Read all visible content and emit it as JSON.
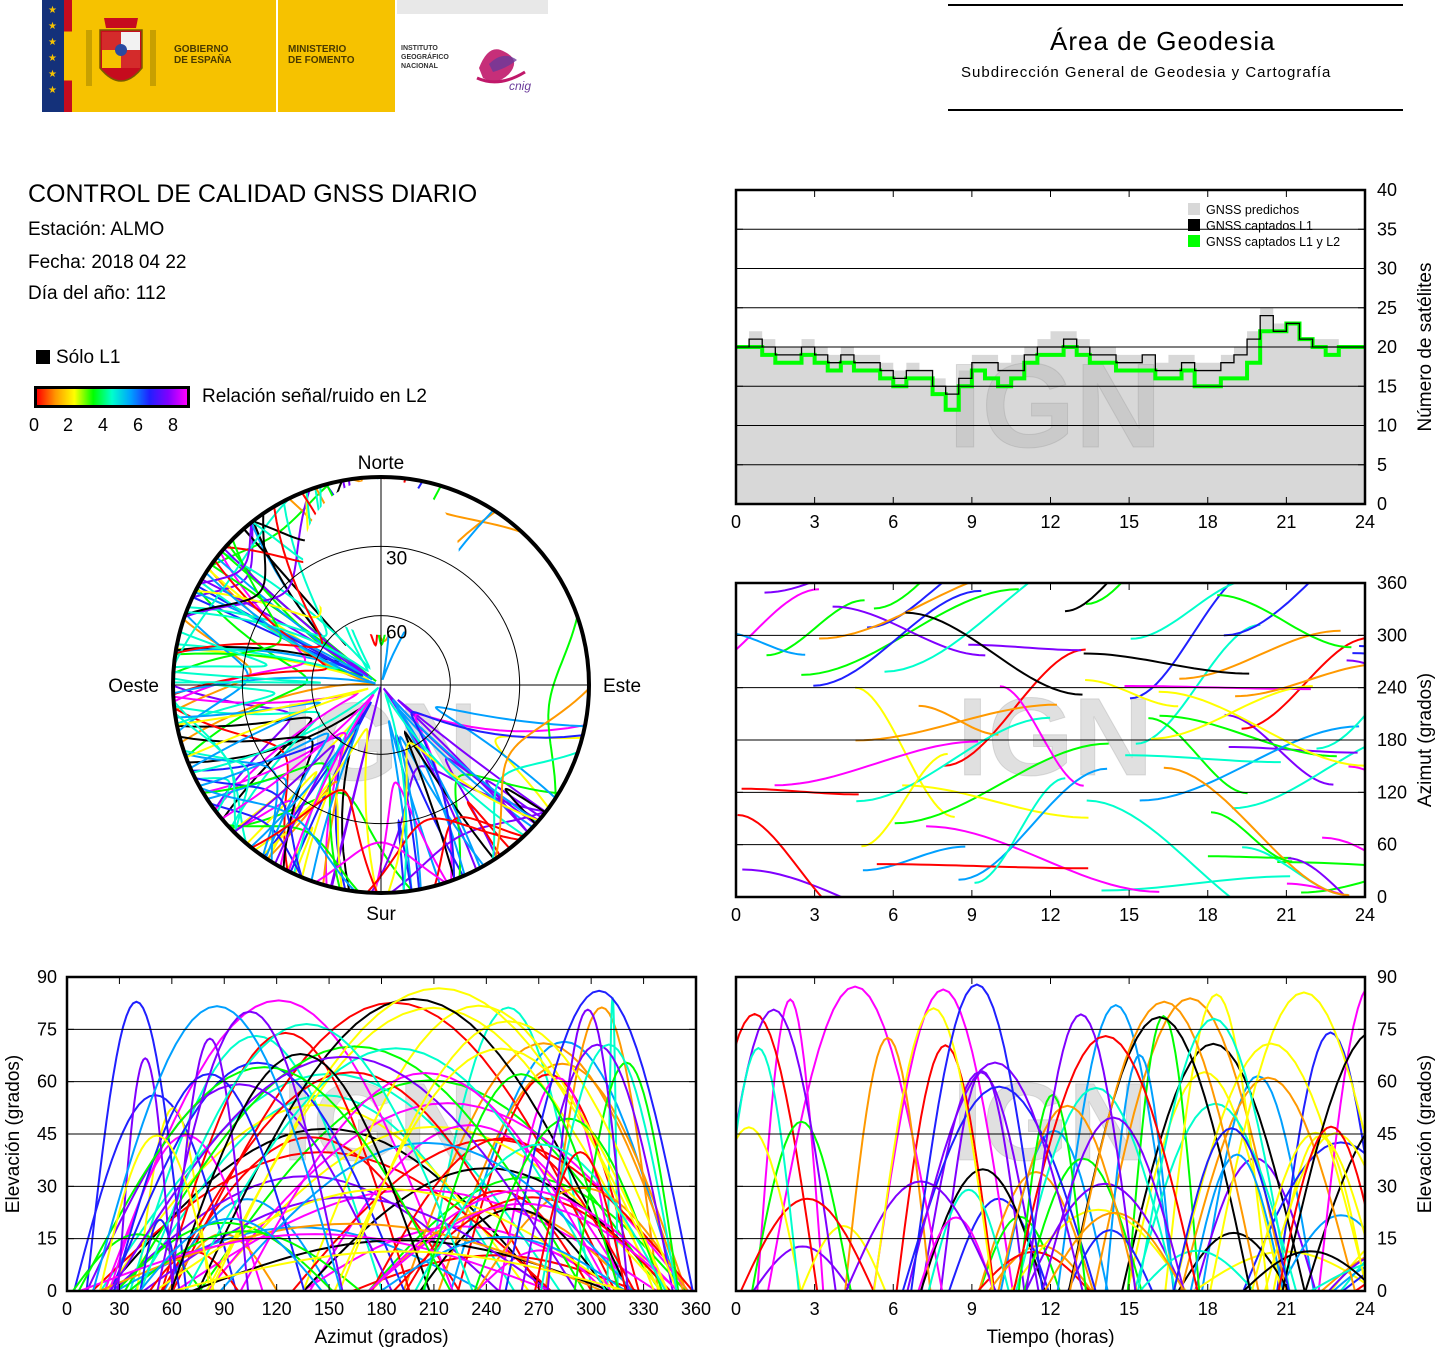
{
  "header": {
    "gobierno_label": "GOBIERNO\nDE ESPAÑA",
    "ministerio_label": "MINISTERIO\nDE FOMENTO",
    "instituto_label": "INSTITUTO\nGEOGRÁFICO\nNACIONAL",
    "cnig_label": "cnig",
    "area_title": "Área de Geodesia",
    "area_subtitle": "Subdirección General de Geodesia y Cartografía"
  },
  "report": {
    "title": "CONTROL DE CALIDAD GNSS DIARIO",
    "station": "Estación: ALMO",
    "date": "Fecha: 2018 04 22",
    "doy": "Día del año: 112"
  },
  "legend": {
    "solo_l1": "Sólo L1",
    "snr_label": "Relación señal/ruido en L2",
    "snr_ticks": [
      "0",
      "2",
      "4",
      "6",
      "8"
    ],
    "colors": [
      "#ff0000",
      "#ff9900",
      "#ffff00",
      "#00ff00",
      "#00ffcc",
      "#00a0ff",
      "#2020ff",
      "#8000ff",
      "#ff00ff"
    ]
  },
  "watermark": "IGN",
  "chart_data": [
    {
      "type": "area",
      "id": "satellite-count",
      "ylabel": "Número de satélites",
      "xlim": [
        0,
        24
      ],
      "ylim": [
        0,
        40
      ],
      "xticks": [
        "0",
        "3",
        "6",
        "9",
        "12",
        "15",
        "18",
        "21",
        "24"
      ],
      "yticks": [
        "0",
        "5",
        "10",
        "15",
        "20",
        "25",
        "30",
        "35",
        "40"
      ],
      "grid": true,
      "legend_position": "top-right",
      "series": [
        {
          "name": "GNSS predichos",
          "color": "#d8d8d8",
          "x": [
            0,
            0.5,
            1,
            1.5,
            2,
            2.5,
            3,
            3.5,
            4,
            4.5,
            5,
            5.5,
            6,
            6.5,
            7,
            7.5,
            8,
            8.5,
            9,
            9.5,
            10,
            10.5,
            11,
            11.5,
            12,
            12.5,
            13,
            13.5,
            14,
            14.5,
            15,
            15.5,
            16,
            16.5,
            17,
            17.5,
            18,
            18.5,
            19,
            19.5,
            20,
            20.5,
            21,
            21.5,
            22,
            22.5,
            23,
            23.5,
            24
          ],
          "y": [
            20,
            22,
            21,
            20,
            20,
            21,
            20,
            19,
            20,
            19,
            19,
            18,
            17,
            18,
            17,
            16,
            15,
            17,
            19,
            19,
            18,
            19,
            20,
            21,
            22,
            22,
            21,
            20,
            20,
            19,
            19,
            19,
            18,
            19,
            19,
            18,
            18,
            19,
            20,
            22,
            25,
            23,
            23,
            21,
            21,
            21,
            20,
            20,
            21
          ]
        },
        {
          "name": "GNSS captados L1",
          "color": "#000000",
          "x": [
            0,
            0.5,
            1,
            1.5,
            2,
            2.5,
            3,
            3.5,
            4,
            4.5,
            5,
            5.5,
            6,
            6.5,
            7,
            7.5,
            8,
            8.5,
            9,
            9.5,
            10,
            10.5,
            11,
            11.5,
            12,
            12.5,
            13,
            13.5,
            14,
            14.5,
            15,
            15.5,
            16,
            16.5,
            17,
            17.5,
            18,
            18.5,
            19,
            19.5,
            20,
            20.5,
            21,
            21.5,
            22,
            22.5,
            23,
            23.5,
            24
          ],
          "y": [
            20,
            21,
            20,
            19,
            19,
            20,
            19,
            18,
            19,
            18,
            18,
            17,
            16,
            17,
            17,
            15,
            14,
            16,
            18,
            18,
            17,
            17,
            19,
            20,
            20,
            21,
            20,
            19,
            19,
            18,
            18,
            19,
            17,
            17,
            18,
            17,
            17,
            18,
            19,
            21,
            24,
            22,
            23,
            21,
            20,
            20,
            20,
            20,
            20
          ]
        },
        {
          "name": "GNSS captados L1 y L2",
          "color": "#00ff00",
          "x": [
            0,
            0.5,
            1,
            1.5,
            2,
            2.5,
            3,
            3.5,
            4,
            4.5,
            5,
            5.5,
            6,
            6.5,
            7,
            7.5,
            8,
            8.5,
            9,
            9.5,
            10,
            10.5,
            11,
            11.5,
            12,
            12.5,
            13,
            13.5,
            14,
            14.5,
            15,
            15.5,
            16,
            16.5,
            17,
            17.5,
            18,
            18.5,
            19,
            19.5,
            20,
            20.5,
            21,
            21.5,
            22,
            22.5,
            23,
            23.5,
            24
          ],
          "y": [
            20,
            20,
            19,
            18,
            18,
            19,
            18,
            17,
            18,
            17,
            17,
            16,
            15,
            16,
            16,
            14,
            12,
            15,
            17,
            16,
            15,
            16,
            18,
            19,
            19,
            20,
            19,
            18,
            18,
            17,
            17,
            17,
            16,
            16,
            17,
            15,
            15,
            16,
            16,
            18,
            22,
            22,
            23,
            21,
            20,
            19,
            20,
            20,
            20
          ]
        }
      ]
    },
    {
      "type": "scatter",
      "id": "azimuth-vs-time",
      "ylabel": "Azimut (grados)",
      "xlim": [
        0,
        24
      ],
      "ylim": [
        0,
        360
      ],
      "xticks": [
        "0",
        "3",
        "6",
        "9",
        "12",
        "15",
        "18",
        "21",
        "24"
      ],
      "yticks": [
        "0",
        "60",
        "120",
        "180",
        "240",
        "300",
        "360"
      ],
      "grid": true
    },
    {
      "type": "scatter",
      "id": "skyplot",
      "compass": {
        "north": "Norte",
        "south": "Sur",
        "east": "Este",
        "west": "Oeste"
      },
      "rings": [
        "30",
        "60"
      ]
    },
    {
      "type": "scatter",
      "id": "elevation-vs-azimuth",
      "xlabel": "Azimut (grados)",
      "ylabel": "Elevación (grados)",
      "xlim": [
        0,
        360
      ],
      "ylim": [
        0,
        90
      ],
      "xticks": [
        "0",
        "30",
        "60",
        "90",
        "120",
        "150",
        "180",
        "210",
        "240",
        "270",
        "300",
        "330",
        "360"
      ],
      "yticks": [
        "0",
        "15",
        "30",
        "45",
        "60",
        "75",
        "90"
      ],
      "grid": true
    },
    {
      "type": "line",
      "id": "elevation-vs-time",
      "xlabel": "Tiempo (horas)",
      "ylabel": "Elevación (grados)",
      "xlim": [
        0,
        24
      ],
      "ylim": [
        0,
        90
      ],
      "xticks": [
        "0",
        "3",
        "6",
        "9",
        "12",
        "15",
        "18",
        "21",
        "24"
      ],
      "yticks": [
        "0",
        "15",
        "30",
        "45",
        "60",
        "75",
        "90"
      ],
      "grid": true
    }
  ]
}
